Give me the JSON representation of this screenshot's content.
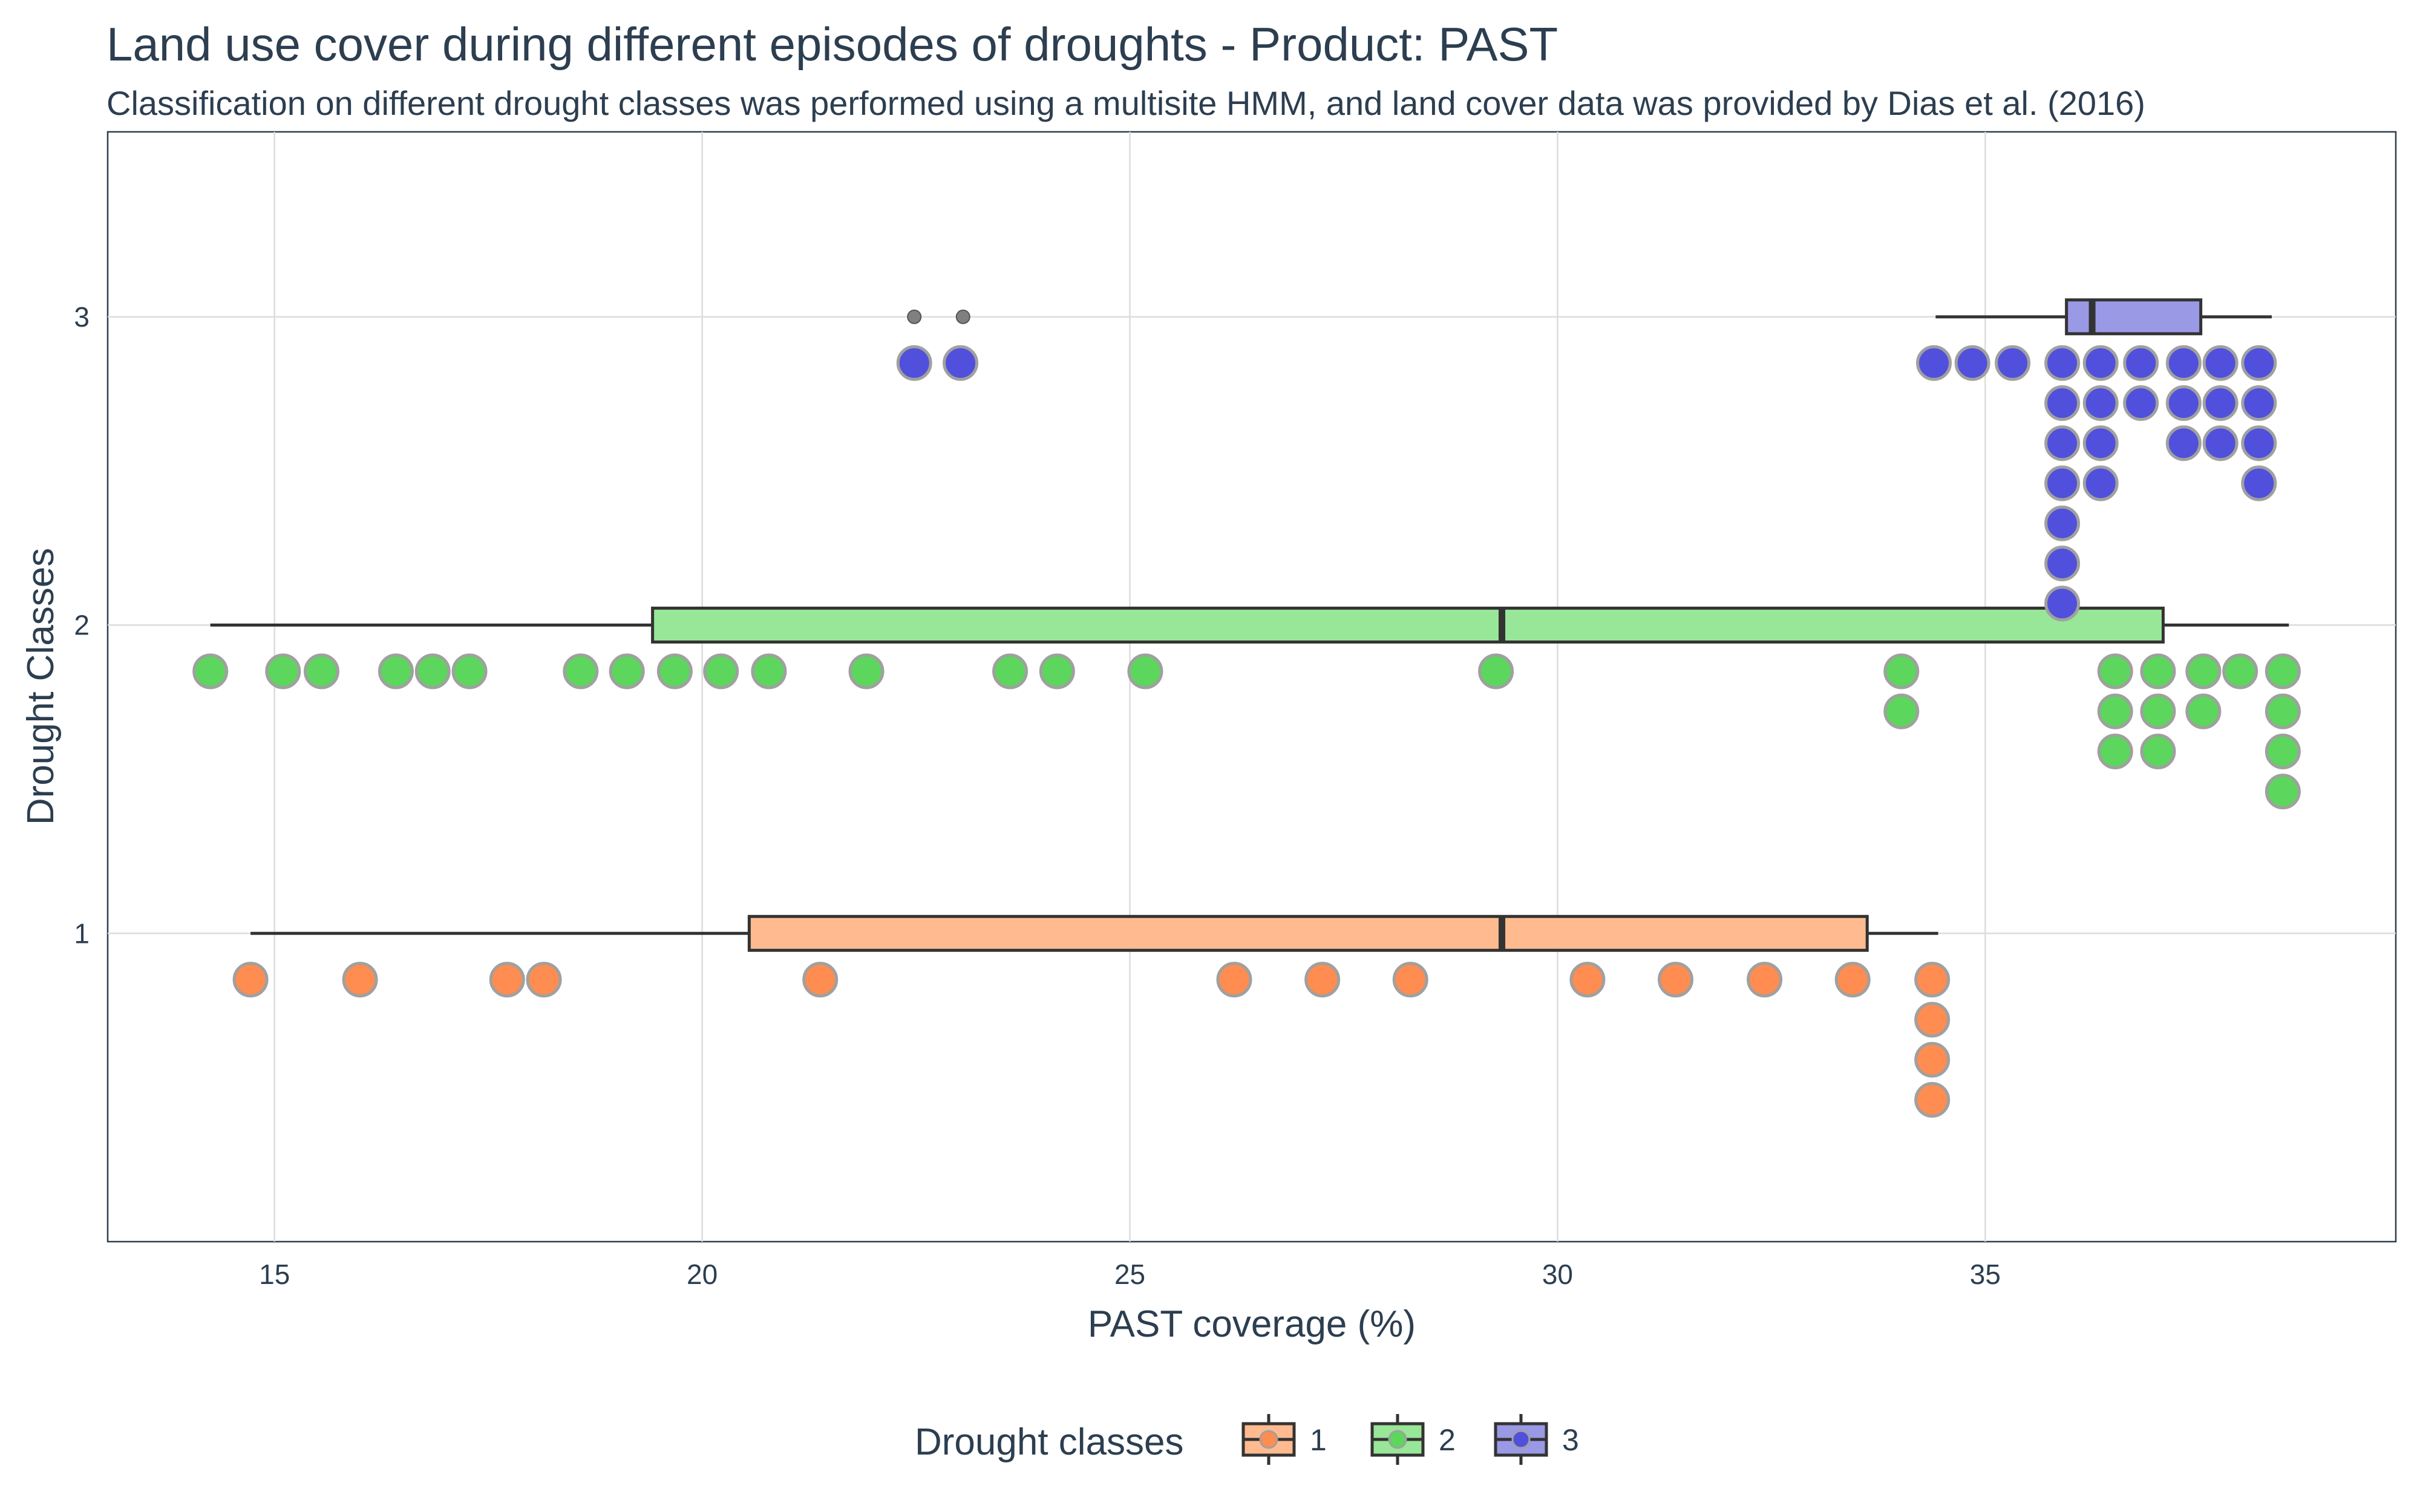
{
  "chart_data": {
    "type": "box",
    "title": "Land use cover during different episodes of droughts - Product: PAST",
    "subtitle": "Classification on different drought classes was performed using a multisite HMM, and land cover data was provided by Dias et al. (2016)",
    "xlabel": "PAST coverage (%)",
    "ylabel": "Drought Classes",
    "xlim": [
      13.05,
      39.8
    ],
    "ylim": [
      0.0,
      3.6
    ],
    "xticks": [
      15,
      20,
      25,
      30,
      35
    ],
    "yticks": [
      1,
      2,
      3
    ],
    "grid": true,
    "legend": {
      "title": "Drought classes",
      "position": "bottom",
      "entries": [
        "1",
        "2",
        "3"
      ]
    },
    "series": [
      {
        "name": "1",
        "y": 1,
        "color": "#ff8c50",
        "box_color": "#ffbb8f",
        "box": {
          "whisker_low": 14.72,
          "q1": 20.55,
          "median": 29.35,
          "q3": 33.62,
          "whisker_high": 34.45
        },
        "outliers": [],
        "points": [
          {
            "x": 14.72,
            "y": 0.85
          },
          {
            "x": 16.0,
            "y": 0.85
          },
          {
            "x": 17.72,
            "y": 0.85
          },
          {
            "x": 18.15,
            "y": 0.85
          },
          {
            "x": 21.38,
            "y": 0.85
          },
          {
            "x": 26.22,
            "y": 0.85
          },
          {
            "x": 27.25,
            "y": 0.85
          },
          {
            "x": 28.28,
            "y": 0.85
          },
          {
            "x": 30.35,
            "y": 0.85
          },
          {
            "x": 31.38,
            "y": 0.85
          },
          {
            "x": 32.42,
            "y": 0.85
          },
          {
            "x": 33.45,
            "y": 0.85
          },
          {
            "x": 34.38,
            "y": 0.85
          },
          {
            "x": 34.38,
            "y": 0.72
          },
          {
            "x": 34.38,
            "y": 0.59
          },
          {
            "x": 34.38,
            "y": 0.46
          }
        ]
      },
      {
        "name": "2",
        "y": 2,
        "color": "#5cd65c",
        "box_color": "#98e698",
        "box": {
          "whisker_low": 14.25,
          "q1": 19.42,
          "median": 29.35,
          "q3": 37.08,
          "whisker_high": 38.55
        },
        "outliers": [],
        "points": [
          {
            "x": 14.25,
            "y": 1.85
          },
          {
            "x": 15.1,
            "y": 1.85
          },
          {
            "x": 15.55,
            "y": 1.85
          },
          {
            "x": 16.42,
            "y": 1.85
          },
          {
            "x": 16.85,
            "y": 1.85
          },
          {
            "x": 17.28,
            "y": 1.85
          },
          {
            "x": 18.58,
            "y": 1.85
          },
          {
            "x": 19.12,
            "y": 1.85
          },
          {
            "x": 19.68,
            "y": 1.85
          },
          {
            "x": 20.22,
            "y": 1.85
          },
          {
            "x": 20.78,
            "y": 1.85
          },
          {
            "x": 21.92,
            "y": 1.85
          },
          {
            "x": 23.6,
            "y": 1.85
          },
          {
            "x": 24.15,
            "y": 1.85
          },
          {
            "x": 25.18,
            "y": 1.85
          },
          {
            "x": 29.28,
            "y": 1.85
          },
          {
            "x": 34.02,
            "y": 1.85
          },
          {
            "x": 34.02,
            "y": 1.72
          },
          {
            "x": 36.52,
            "y": 1.85
          },
          {
            "x": 36.52,
            "y": 1.72
          },
          {
            "x": 36.52,
            "y": 1.59
          },
          {
            "x": 37.02,
            "y": 1.85
          },
          {
            "x": 37.02,
            "y": 1.72
          },
          {
            "x": 37.02,
            "y": 1.59
          },
          {
            "x": 37.55,
            "y": 1.85
          },
          {
            "x": 37.55,
            "y": 1.72
          },
          {
            "x": 37.98,
            "y": 1.85
          },
          {
            "x": 38.48,
            "y": 1.85
          },
          {
            "x": 38.48,
            "y": 1.72
          },
          {
            "x": 38.48,
            "y": 1.59
          },
          {
            "x": 38.48,
            "y": 1.46
          }
        ]
      },
      {
        "name": "3",
        "y": 3,
        "color": "#5050dc",
        "box_color": "#9999e6",
        "box": {
          "whisker_low": 34.42,
          "q1": 35.95,
          "median": 36.25,
          "q3": 37.52,
          "whisker_high": 38.35
        },
        "outliers": [
          22.48,
          23.05
        ],
        "points": [
          {
            "x": 22.48,
            "y": 2.85
          },
          {
            "x": 23.02,
            "y": 2.85
          },
          {
            "x": 34.4,
            "y": 2.85
          },
          {
            "x": 34.85,
            "y": 2.85
          },
          {
            "x": 35.32,
            "y": 2.85
          },
          {
            "x": 35.9,
            "y": 2.85
          },
          {
            "x": 35.9,
            "y": 2.72
          },
          {
            "x": 35.9,
            "y": 2.59
          },
          {
            "x": 35.9,
            "y": 2.46
          },
          {
            "x": 35.9,
            "y": 2.33
          },
          {
            "x": 35.9,
            "y": 2.2
          },
          {
            "x": 35.9,
            "y": 2.07
          },
          {
            "x": 36.35,
            "y": 2.85
          },
          {
            "x": 36.35,
            "y": 2.72
          },
          {
            "x": 36.35,
            "y": 2.59
          },
          {
            "x": 36.35,
            "y": 2.46
          },
          {
            "x": 36.82,
            "y": 2.85
          },
          {
            "x": 36.82,
            "y": 2.72
          },
          {
            "x": 37.32,
            "y": 2.85
          },
          {
            "x": 37.32,
            "y": 2.72
          },
          {
            "x": 37.32,
            "y": 2.59
          },
          {
            "x": 37.75,
            "y": 2.85
          },
          {
            "x": 37.75,
            "y": 2.72
          },
          {
            "x": 37.75,
            "y": 2.59
          },
          {
            "x": 38.2,
            "y": 2.85
          },
          {
            "x": 38.2,
            "y": 2.72
          },
          {
            "x": 38.2,
            "y": 2.59
          },
          {
            "x": 38.2,
            "y": 2.46
          }
        ]
      }
    ]
  }
}
